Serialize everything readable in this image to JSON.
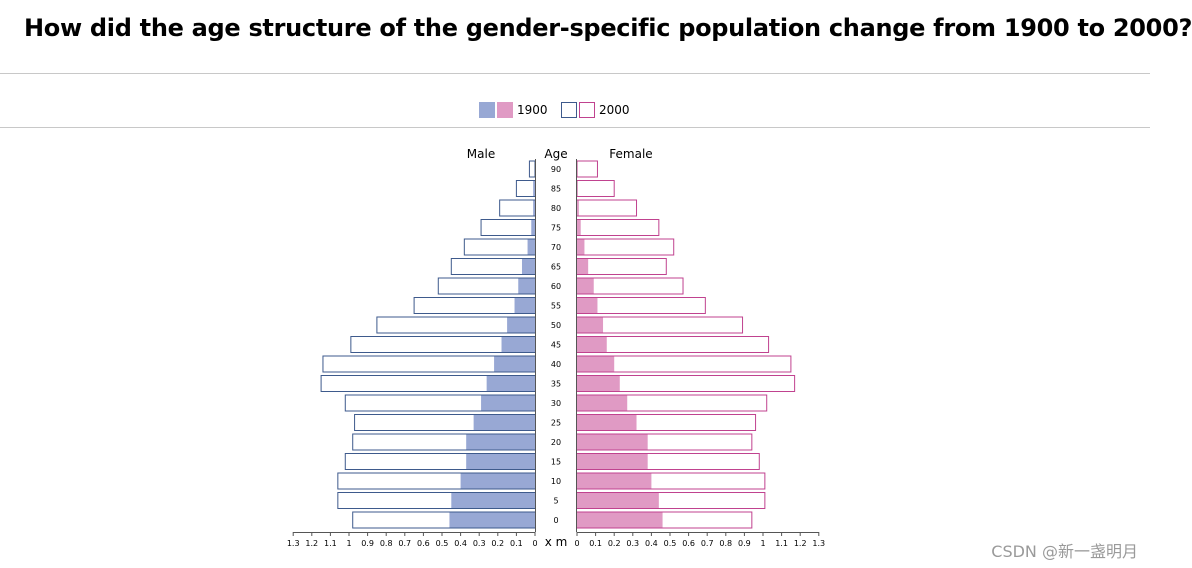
{
  "page": {
    "title": "How did the age structure of the gender-specific population change from 1900 to 2000?",
    "watermark": "CSDN @新一盏明月"
  },
  "legend": [
    {
      "label": "1900",
      "style": "filled"
    },
    {
      "label": "2000",
      "style": "outline"
    }
  ],
  "colors": {
    "male_fill": "#98a8d4",
    "male_stroke": "#3e5a8c",
    "female_fill": "#e09ac4",
    "female_stroke": "#c0428f",
    "axis": "#555555"
  },
  "chart_data": {
    "type": "bar",
    "subtype": "population-pyramid",
    "title": "How did the age structure of the gender-specific population change from 1900 to 2000?",
    "left_label": "Male",
    "right_label": "Female",
    "center_label": "Age",
    "x_unit": "x m",
    "xlim": [
      0,
      1.3
    ],
    "x_ticks": [
      "1.3",
      "1.2",
      "1.1",
      "1",
      "0.9",
      "0.8",
      "0.7",
      "0.6",
      "0.5",
      "0.4",
      "0.3",
      "0.2",
      "0.1",
      "0"
    ],
    "x_ticks_right": [
      "0",
      "0.1",
      "0.2",
      "0.3",
      "0.4",
      "0.5",
      "0.6",
      "0.7",
      "0.8",
      "0.9",
      "1",
      "1.1",
      "1.2",
      "1.3"
    ],
    "ages": [
      90,
      85,
      80,
      75,
      70,
      65,
      60,
      55,
      50,
      45,
      40,
      35,
      30,
      25,
      20,
      15,
      10,
      5,
      0
    ],
    "series": [
      {
        "name": "1900",
        "sex": "Male",
        "values": [
          0.0,
          0.01,
          0.01,
          0.02,
          0.04,
          0.07,
          0.09,
          0.11,
          0.15,
          0.18,
          0.22,
          0.26,
          0.29,
          0.33,
          0.37,
          0.37,
          0.4,
          0.45,
          0.46
        ]
      },
      {
        "name": "1900",
        "sex": "Female",
        "values": [
          0.0,
          0.0,
          0.01,
          0.02,
          0.04,
          0.06,
          0.09,
          0.11,
          0.14,
          0.16,
          0.2,
          0.23,
          0.27,
          0.32,
          0.38,
          0.38,
          0.4,
          0.44,
          0.46
        ]
      },
      {
        "name": "2000",
        "sex": "Male",
        "values": [
          0.03,
          0.1,
          0.19,
          0.29,
          0.38,
          0.45,
          0.52,
          0.65,
          0.85,
          0.99,
          1.14,
          1.15,
          1.02,
          0.97,
          0.98,
          1.02,
          1.06,
          1.06,
          0.98
        ]
      },
      {
        "name": "2000",
        "sex": "Female",
        "values": [
          0.11,
          0.2,
          0.32,
          0.44,
          0.52,
          0.48,
          0.57,
          0.69,
          0.89,
          1.03,
          1.15,
          1.17,
          1.02,
          0.96,
          0.94,
          0.98,
          1.01,
          1.01,
          0.94
        ]
      }
    ],
    "grid": false,
    "legend_position": "top-center"
  }
}
